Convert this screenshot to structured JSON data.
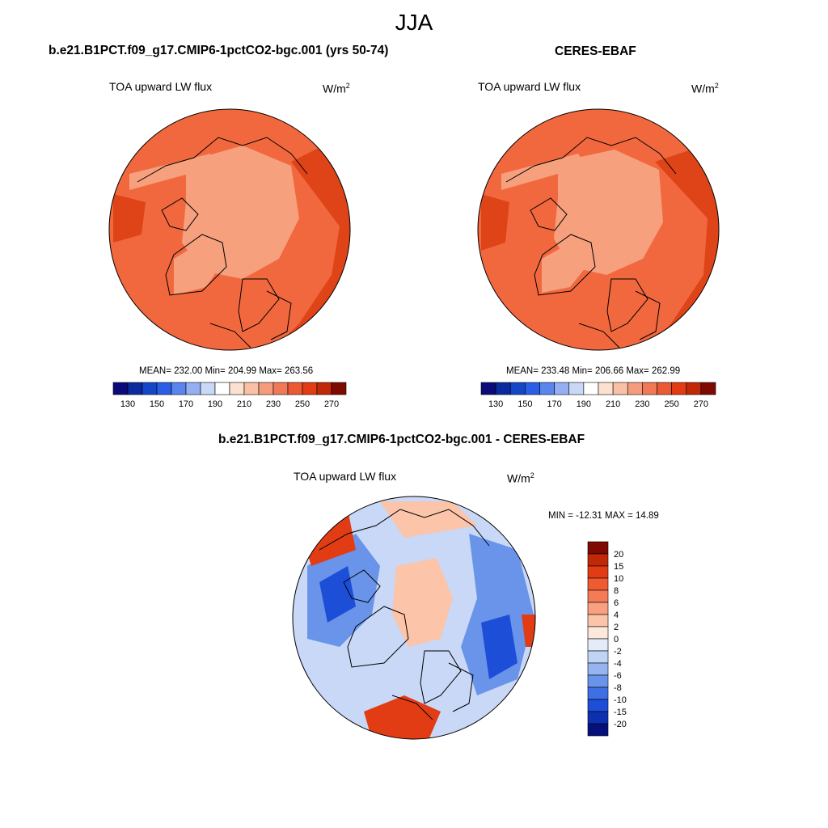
{
  "figure": {
    "season": "JJA"
  },
  "panels": [
    {
      "id": "model",
      "title": "b.e21.B1PCT.f09_g17.CMIP6-1pctCO2-bgc.001 (yrs 50-74)",
      "variable": "TOA upward LW flux",
      "units_base": "W/m",
      "units_exp": "2",
      "stats": "MEAN= 232.00  Min= 204.99  Max= 263.56"
    },
    {
      "id": "obs",
      "title": "CERES-EBAF",
      "variable": "TOA upward LW flux",
      "units_base": "W/m",
      "units_exp": "2",
      "stats": "MEAN= 233.48  Min= 206.66  Max= 262.99"
    },
    {
      "id": "diff",
      "title": "b.e21.B1PCT.f09_g17.CMIP6-1pctCO2-bgc.001 - CERES-EBAF",
      "variable": "TOA upward LW flux",
      "units_base": "W/m",
      "units_exp": "2",
      "stats": "MIN = -12.31 MAX =  14.89"
    }
  ],
  "colorbars": {
    "absolute": {
      "labels": [
        "130",
        "150",
        "170",
        "190",
        "210",
        "230",
        "250",
        "270"
      ],
      "colors": [
        "#0a0a78",
        "#0a2a9e",
        "#1446c8",
        "#2a5ee6",
        "#5a84ee",
        "#94b0f2",
        "#c8d8f6",
        "#ffffff",
        "#fce0d0",
        "#f8c0a4",
        "#f49c7c",
        "#f07a58",
        "#ec5a34",
        "#e23c14",
        "#c02808",
        "#7e0a02"
      ]
    },
    "difference": {
      "labels": [
        "20",
        "15",
        "10",
        "8",
        "6",
        "4",
        "2",
        "0",
        "-2",
        "-4",
        "-6",
        "-8",
        "-10",
        "-15",
        "-20"
      ],
      "colors": [
        "#7e0a02",
        "#c02808",
        "#e23c14",
        "#f05a30",
        "#f47a58",
        "#f8a080",
        "#fcc4a8",
        "#fde8dc",
        "#e4ecfa",
        "#c0d4f6",
        "#96b4f0",
        "#6a94ea",
        "#3e70e4",
        "#1c4ed8",
        "#0c30b0",
        "#06107a"
      ]
    }
  },
  "map": {
    "projection": "north polar stereographic",
    "absolute_base_color": "#f2683e",
    "absolute_light_color": "#f6a07e",
    "absolute_dark_color": "#de4418",
    "difference_base_color": "#c8d8f6"
  }
}
